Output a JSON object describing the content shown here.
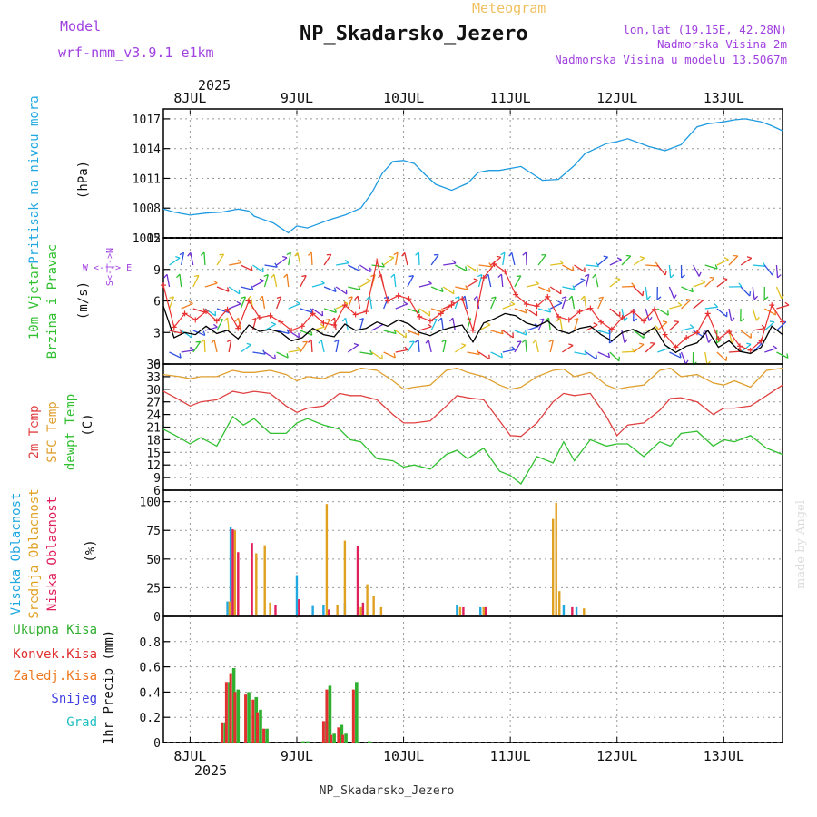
{
  "header": {
    "model_label": "Model",
    "model_name": "wrf-nmm_v3.9.1 e1km",
    "product": "Meteogram",
    "station": "NP_Skadarsko_Jezero",
    "coords": "lon,lat (19.15E, 42.28N)",
    "elevation": "Nadmorska Visina 2m",
    "model_elevation": "Nadmorska Visina u modelu 13.5067m",
    "credit": "made by Angel",
    "footer_station": "NP_Skadarsko_Jezero"
  },
  "time_axis": {
    "year": "2025",
    "ticks": [
      "8JUL",
      "9JUL",
      "10JUL",
      "11JUL",
      "12JUL",
      "13JUL"
    ],
    "start_offset_days": -0.25,
    "end_offset_days": 5.55
  },
  "panels": {
    "pressure": {
      "label": "Pritisak na nivou mora",
      "unit": "(hPa)"
    },
    "wind": {
      "label1": "10m Vjetar",
      "label2": "Brzina i Pravac",
      "unit": "(m/s)",
      "compass_we": "W <-|-> E",
      "compass_sn": "S<-|->N"
    },
    "temperature": {
      "label1": "2m Temp",
      "label2": "SFC Temp",
      "label3": "dewpt Temp",
      "unit": "(C)"
    },
    "cloud": {
      "label1": "Visoka Oblacnost",
      "label2": "Srednja Oblacnost",
      "label3": "Niska Oblacnost",
      "unit": "(%)"
    },
    "precip": {
      "legend": [
        "Ukupna Kisa",
        "Konvek.Kisa",
        "Zaledj.Kisa",
        "Snijeg",
        "Grad"
      ],
      "unit": "1hr Precip (mm)"
    }
  },
  "colors": {
    "pressure": "#1e9be0",
    "wind_speed": "#000000",
    "wind_gust": "#e83030",
    "temp2m": "#e04040",
    "sfc_temp": "#e0a030",
    "dewpt": "#30c030",
    "cloud_high": "#20a8e0",
    "cloud_mid": "#e0a020",
    "cloud_low": "#e0205a",
    "precip_total": "#30b030",
    "precip_conv": "#e03030",
    "precip_frz": "#f07820",
    "precip_snow": "#4040e0",
    "precip_hail": "#20c0c0",
    "header_purple": "#a040e0",
    "header_orange": "#f0c060"
  },
  "chart_data": [
    {
      "type": "line",
      "title": "Pritisak na nivou mora",
      "ylabel": "(hPa)",
      "ylim": [
        1005,
        1018
      ],
      "yticks": [
        "1005",
        "1008",
        "1011",
        "1014",
        "1017"
      ],
      "x_days": [
        -0.25,
        -0.15,
        0,
        0.15,
        0.3,
        0.45,
        0.55,
        0.6,
        0.7,
        0.78,
        0.85,
        0.92,
        1.0,
        1.1,
        1.2,
        1.3,
        1.45,
        1.6,
        1.7,
        1.8,
        1.9,
        2.0,
        2.1,
        2.2,
        2.3,
        2.45,
        2.6,
        2.7,
        2.8,
        2.9,
        3.0,
        3.1,
        3.2,
        3.3,
        3.45,
        3.6,
        3.7,
        3.8,
        3.9,
        4.0,
        4.1,
        4.2,
        4.3,
        4.45,
        4.6,
        4.75,
        4.85,
        5.0,
        5.1,
        5.2,
        5.35,
        5.45,
        5.55
      ],
      "series": [
        {
          "values": [
            1007.9,
            1007.6,
            1007.3,
            1007.5,
            1007.6,
            1007.9,
            1007.7,
            1007.2,
            1006.8,
            1006.5,
            1006.0,
            1005.5,
            1006.2,
            1006.0,
            1006.4,
            1006.8,
            1007.3,
            1008.0,
            1009.5,
            1011.5,
            1012.7,
            1012.8,
            1012.5,
            1011.4,
            1010.4,
            1009.8,
            1010.5,
            1011.6,
            1011.8,
            1011.8,
            1012.0,
            1012.2,
            1011.5,
            1010.8,
            1010.9,
            1012.3,
            1013.5,
            1014.0,
            1014.5,
            1014.7,
            1015.0,
            1014.6,
            1014.2,
            1013.8,
            1014.4,
            1016.2,
            1016.5,
            1016.7,
            1016.9,
            1017.0,
            1016.7,
            1016.3,
            1015.8
          ]
        }
      ]
    },
    {
      "type": "line",
      "title": "10m Vjetar",
      "ylabel": "(m/s)",
      "ylim": [
        0,
        12
      ],
      "yticks": [
        "0",
        "3",
        "6",
        "9",
        "12"
      ],
      "x_days": [
        -0.25,
        -0.15,
        -0.05,
        0.05,
        0.15,
        0.25,
        0.35,
        0.45,
        0.55,
        0.65,
        0.75,
        0.85,
        0.95,
        1.05,
        1.15,
        1.25,
        1.35,
        1.45,
        1.55,
        1.65,
        1.75,
        1.85,
        1.95,
        2.05,
        2.15,
        2.25,
        2.35,
        2.45,
        2.55,
        2.65,
        2.75,
        2.85,
        2.95,
        3.05,
        3.15,
        3.25,
        3.35,
        3.45,
        3.55,
        3.65,
        3.75,
        3.85,
        3.95,
        4.05,
        4.15,
        4.25,
        4.35,
        4.45,
        4.55,
        4.65,
        4.75,
        4.85,
        4.95,
        5.05,
        5.15,
        5.25,
        5.35,
        5.45,
        5.55
      ],
      "series": [
        {
          "name": "speed",
          "values": [
            5.5,
            2.5,
            3.0,
            2.8,
            3.6,
            2.9,
            3.2,
            2.4,
            3.7,
            3.1,
            3.3,
            3.0,
            2.2,
            2.5,
            3.4,
            2.8,
            2.6,
            3.8,
            3.2,
            3.4,
            4.0,
            3.6,
            4.2,
            3.8,
            3.0,
            2.7,
            3.2,
            3.5,
            3.7,
            2.1,
            3.9,
            4.3,
            4.8,
            4.6,
            3.9,
            3.6,
            4.1,
            3.2,
            2.9,
            3.4,
            3.6,
            2.8,
            2.2,
            3.0,
            3.3,
            2.8,
            3.5,
            1.8,
            1.1,
            1.7,
            2.0,
            3.2,
            1.6,
            2.2,
            1.2,
            1.0,
            1.6,
            3.6,
            2.8
          ]
        },
        {
          "name": "gust",
          "values": [
            7.5,
            3.5,
            4.8,
            4.2,
            5.0,
            4.1,
            5.2,
            3.4,
            6.0,
            4.4,
            4.6,
            4.0,
            3.2,
            3.6,
            4.8,
            3.9,
            3.7,
            5.6,
            4.7,
            5.0,
            9.8,
            6.0,
            6.5,
            6.2,
            4.5,
            4.1,
            4.8,
            5.6,
            6.2,
            3.2,
            8.2,
            9.5,
            8.8,
            6.6,
            5.7,
            5.5,
            6.4,
            4.5,
            4.2,
            5.0,
            5.3,
            4.0,
            3.3,
            4.4,
            5.0,
            4.1,
            5.2,
            2.8,
            1.6,
            2.5,
            3.0,
            4.8,
            2.4,
            3.1,
            1.7,
            1.3,
            2.2,
            5.6,
            4.0
          ]
        }
      ]
    },
    {
      "type": "line",
      "title": "2m Temp / SFC Temp / dewpt Temp",
      "ylabel": "(C)",
      "ylim": [
        6,
        36
      ],
      "yticks": [
        "6",
        "9",
        "12",
        "15",
        "18",
        "21",
        "24",
        "27",
        "30",
        "33",
        "36"
      ],
      "x_days": [
        -0.25,
        -0.1,
        0.0,
        0.1,
        0.25,
        0.4,
        0.5,
        0.6,
        0.75,
        0.9,
        1.0,
        1.1,
        1.25,
        1.4,
        1.5,
        1.6,
        1.75,
        1.9,
        2.0,
        2.1,
        2.25,
        2.4,
        2.5,
        2.6,
        2.75,
        2.9,
        3.0,
        3.1,
        3.25,
        3.4,
        3.5,
        3.6,
        3.75,
        3.9,
        4.0,
        4.1,
        4.25,
        4.4,
        4.5,
        4.6,
        4.75,
        4.9,
        5.0,
        5.1,
        5.25,
        5.4,
        5.55
      ],
      "series": [
        {
          "name": "2m Temp",
          "values": [
            29.5,
            27.5,
            26.0,
            27.0,
            27.5,
            29.5,
            29.0,
            29.5,
            29.0,
            26.0,
            24.5,
            25.5,
            26.0,
            29.0,
            28.5,
            28.5,
            27.5,
            24.0,
            22.0,
            22.0,
            22.5,
            26.0,
            28.5,
            28.0,
            27.5,
            22.5,
            19.0,
            18.8,
            22.0,
            27.0,
            29.0,
            28.5,
            29.0,
            23.5,
            19.0,
            21.5,
            22.0,
            25.0,
            27.8,
            28.0,
            27.0,
            24.0,
            25.5,
            25.5,
            26.0,
            28.5,
            31.0
          ]
        },
        {
          "name": "SFC Temp",
          "values": [
            33.5,
            33.0,
            32.5,
            33.0,
            33.0,
            34.5,
            34.0,
            34.0,
            34.5,
            33.5,
            32.0,
            33.0,
            32.5,
            34.0,
            34.0,
            35.0,
            34.5,
            32.0,
            30.0,
            30.5,
            31.0,
            34.5,
            35.0,
            34.0,
            33.0,
            31.0,
            30.0,
            30.5,
            33.0,
            34.5,
            34.8,
            33.0,
            34.0,
            31.0,
            30.0,
            30.5,
            31.0,
            34.5,
            35.0,
            33.0,
            33.5,
            31.5,
            31.0,
            32.0,
            30.5,
            34.5,
            35.0
          ]
        },
        {
          "name": "dewpt Temp",
          "values": [
            20.5,
            18.5,
            17.0,
            18.5,
            16.5,
            23.5,
            21.5,
            23.0,
            19.5,
            19.5,
            22.0,
            23.0,
            21.5,
            20.5,
            18.0,
            17.5,
            13.5,
            13.0,
            11.5,
            12.0,
            11.0,
            14.5,
            15.5,
            13.5,
            16.0,
            10.5,
            9.5,
            7.5,
            14.0,
            12.5,
            17.5,
            13.0,
            18.0,
            16.5,
            17.0,
            17.0,
            14.0,
            17.5,
            16.5,
            19.5,
            20.0,
            16.5,
            18.0,
            17.5,
            19.0,
            16.0,
            14.5
          ]
        }
      ]
    },
    {
      "type": "bar",
      "title": "Oblacnost",
      "ylabel": "(%)",
      "ylim": [
        0,
        110
      ],
      "yticks": [
        "0",
        "25",
        "50",
        "75",
        "100"
      ],
      "series": [
        {
          "name": "high",
          "points": [
            [
              0.35,
              13
            ],
            [
              0.38,
              78
            ],
            [
              1.0,
              36
            ],
            [
              1.15,
              9
            ],
            [
              1.25,
              10
            ],
            [
              1.45,
              12
            ],
            [
              2.5,
              10
            ],
            [
              2.72,
              8
            ],
            [
              3.5,
              10
            ],
            [
              3.62,
              8
            ]
          ]
        },
        {
          "name": "mid",
          "points": [
            [
              0.37,
              13
            ],
            [
              0.42,
              75
            ],
            [
              0.62,
              55
            ],
            [
              0.7,
              62
            ],
            [
              0.75,
              12
            ],
            [
              1.28,
              98
            ],
            [
              1.38,
              10
            ],
            [
              1.45,
              66
            ],
            [
              1.6,
              8
            ],
            [
              1.66,
              28
            ],
            [
              1.72,
              18
            ],
            [
              1.79,
              8
            ],
            [
              2.53,
              8
            ],
            [
              2.75,
              8
            ],
            [
              3.4,
              85
            ],
            [
              3.43,
              99
            ],
            [
              3.46,
              22
            ],
            [
              3.69,
              7
            ]
          ]
        },
        {
          "name": "low",
          "points": [
            [
              0.4,
              76
            ],
            [
              0.45,
              56
            ],
            [
              0.58,
              64
            ],
            [
              0.8,
              10
            ],
            [
              1.02,
              15
            ],
            [
              1.3,
              6
            ],
            [
              1.57,
              61
            ],
            [
              1.62,
              12
            ],
            [
              2.56,
              8
            ],
            [
              2.77,
              8
            ],
            [
              3.58,
              8
            ]
          ]
        }
      ]
    },
    {
      "type": "bar",
      "title": "1hr Precip",
      "ylabel": "1hr Precip (mm)",
      "ylim": [
        0,
        1.0
      ],
      "yticks": [
        "0",
        "0.2",
        "0.4",
        "0.6",
        "0.8"
      ],
      "series": [
        {
          "name": "Ukupna Kisa",
          "points": [
            [
              0.33,
              0.16
            ],
            [
              0.37,
              0.48
            ],
            [
              0.41,
              0.59
            ],
            [
              0.45,
              0.42
            ],
            [
              0.55,
              0.4
            ],
            [
              0.62,
              0.36
            ],
            [
              0.66,
              0.26
            ],
            [
              0.72,
              0.11
            ],
            [
              1.06,
              0.01
            ],
            [
              1.1,
              0.01
            ],
            [
              1.28,
              0.17
            ],
            [
              1.31,
              0.45
            ],
            [
              1.35,
              0.07
            ],
            [
              1.42,
              0.14
            ],
            [
              1.46,
              0.07
            ],
            [
              1.56,
              0.48
            ],
            [
              1.68,
              0.01
            ]
          ]
        },
        {
          "name": "Konvek.Kisa",
          "points": [
            [
              0.33,
              0.16
            ],
            [
              0.37,
              0.48
            ],
            [
              0.41,
              0.55
            ],
            [
              0.45,
              0.4
            ],
            [
              0.55,
              0.38
            ],
            [
              0.62,
              0.34
            ],
            [
              0.66,
              0.24
            ],
            [
              0.72,
              0.11
            ],
            [
              1.28,
              0.17
            ],
            [
              1.31,
              0.42
            ],
            [
              1.35,
              0.06
            ],
            [
              1.42,
              0.12
            ],
            [
              1.46,
              0.06
            ],
            [
              1.56,
              0.42
            ]
          ]
        }
      ]
    }
  ]
}
